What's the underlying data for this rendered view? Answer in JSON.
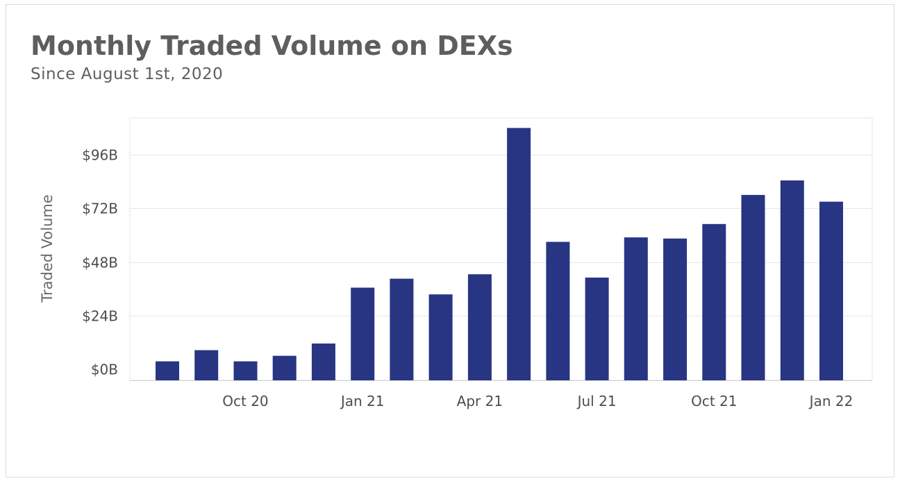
{
  "chart_data": {
    "type": "bar",
    "title": "Monthly Traded Volume on DEXs",
    "subtitle": "Since August 1st, 2020",
    "xlabel": "",
    "ylabel": "Traded Volume",
    "x_tick_labels": [
      "Oct 20",
      "Jan 21",
      "Apr 21",
      "Jul 21",
      "Oct 21",
      "Jan 22"
    ],
    "y_tick_labels": [
      "$0B",
      "$24B",
      "$48B",
      "$72B",
      "$96B"
    ],
    "y_ticks": [
      0,
      24,
      48,
      72,
      96
    ],
    "ylim": [
      0,
      112
    ],
    "grid": true,
    "bar_color": "#283583",
    "categories": [
      "Aug 20",
      "Sep 20",
      "Oct 20",
      "Nov 20",
      "Dec 20",
      "Jan 21",
      "Feb 21",
      "Mar 21",
      "Apr 21",
      "May 21",
      "Jun 21",
      "Jul 21",
      "Aug 21",
      "Sep 21",
      "Oct 21",
      "Nov 21",
      "Dec 21",
      "Jan 22"
    ],
    "values": [
      3.5,
      8.5,
      3.5,
      6,
      11.5,
      36.5,
      40.5,
      33.5,
      42.5,
      108,
      57,
      41,
      59,
      58.5,
      65,
      78,
      84.5,
      75
    ]
  }
}
